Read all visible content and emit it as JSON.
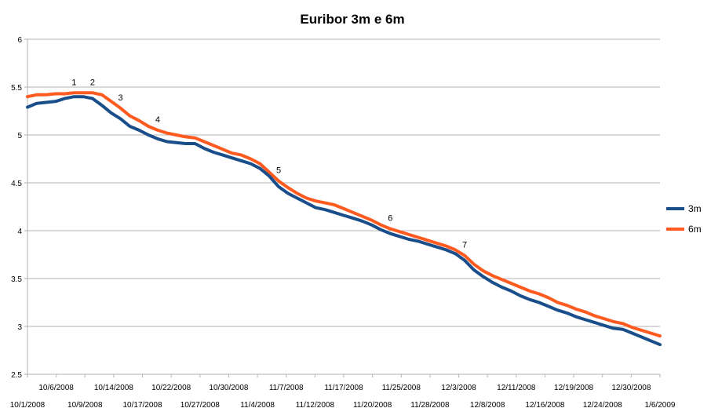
{
  "chart_data": {
    "type": "line",
    "title": "Euribor 3m e 6m",
    "xlabel": "",
    "ylabel": "",
    "ylim": [
      2.5,
      6
    ],
    "yticks": [
      "2.5",
      "3",
      "3.5",
      "4",
      "4.5",
      "5",
      "5.5",
      "6"
    ],
    "grid": true,
    "legend_position": "right",
    "x_tick_labels_row1": [
      "10/6/2008",
      "10/14/2008",
      "10/22/2008",
      "10/30/2008",
      "11/7/2008",
      "11/17/2008",
      "11/25/2008",
      "12/3/2008",
      "12/11/2008",
      "12/19/2008",
      "12/30/2008"
    ],
    "x_tick_labels_row2": [
      "10/1/2008",
      "10/9/2008",
      "10/17/2008",
      "10/27/2008",
      "11/4/2008",
      "11/12/2008",
      "11/20/2008",
      "11/28/2008",
      "12/8/2008",
      "12/16/2008",
      "12/24/2008",
      "1/6/2009"
    ],
    "x": [
      "10/1/2008",
      "10/2/2008",
      "10/3/2008",
      "10/6/2008",
      "10/7/2008",
      "10/8/2008",
      "10/9/2008",
      "10/10/2008",
      "10/13/2008",
      "10/14/2008",
      "10/15/2008",
      "10/16/2008",
      "10/17/2008",
      "10/20/2008",
      "10/21/2008",
      "10/22/2008",
      "10/23/2008",
      "10/24/2008",
      "10/27/2008",
      "10/28/2008",
      "10/29/2008",
      "10/30/2008",
      "10/31/2008",
      "11/3/2008",
      "11/4/2008",
      "11/5/2008",
      "11/6/2008",
      "11/7/2008",
      "11/10/2008",
      "11/11/2008",
      "11/12/2008",
      "11/13/2008",
      "11/14/2008",
      "11/17/2008",
      "11/18/2008",
      "11/19/2008",
      "11/20/2008",
      "11/21/2008",
      "11/24/2008",
      "11/25/2008",
      "11/26/2008",
      "11/27/2008",
      "11/28/2008",
      "12/1/2008",
      "12/2/2008",
      "12/3/2008",
      "12/4/2008",
      "12/5/2008",
      "12/8/2008",
      "12/9/2008",
      "12/10/2008",
      "12/11/2008",
      "12/12/2008",
      "12/15/2008",
      "12/16/2008",
      "12/17/2008",
      "12/18/2008",
      "12/19/2008",
      "12/22/2008",
      "12/23/2008",
      "12/24/2008",
      "12/29/2008",
      "12/30/2008",
      "12/31/2008",
      "1/2/2009",
      "1/5/2009",
      "1/6/2009",
      "1/7/2009",
      "1/8/2009"
    ],
    "series": [
      {
        "name": "3m",
        "color": "#1a4e8a",
        "values": [
          5.29,
          5.33,
          5.34,
          5.35,
          5.38,
          5.4,
          5.4,
          5.38,
          5.31,
          5.23,
          5.17,
          5.09,
          5.05,
          5.0,
          4.96,
          4.93,
          4.92,
          4.91,
          4.91,
          4.86,
          4.82,
          4.79,
          4.76,
          4.73,
          4.7,
          4.65,
          4.57,
          4.46,
          4.39,
          4.34,
          4.29,
          4.24,
          4.22,
          4.19,
          4.16,
          4.13,
          4.1,
          4.06,
          4.01,
          3.97,
          3.94,
          3.91,
          3.89,
          3.86,
          3.83,
          3.8,
          3.76,
          3.69,
          3.59,
          3.52,
          3.46,
          3.41,
          3.37,
          3.32,
          3.28,
          3.25,
          3.21,
          3.17,
          3.14,
          3.1,
          3.07,
          3.04,
          3.01,
          2.98,
          2.97,
          2.93,
          2.89,
          2.85,
          2.81
        ]
      },
      {
        "name": "6m",
        "color": "#ff5a1f",
        "values": [
          5.4,
          5.42,
          5.42,
          5.43,
          5.43,
          5.44,
          5.44,
          5.44,
          5.42,
          5.35,
          5.28,
          5.2,
          5.15,
          5.09,
          5.05,
          5.02,
          5.0,
          4.98,
          4.97,
          4.93,
          4.89,
          4.85,
          4.81,
          4.79,
          4.75,
          4.7,
          4.61,
          4.52,
          4.45,
          4.39,
          4.34,
          4.31,
          4.29,
          4.27,
          4.23,
          4.19,
          4.15,
          4.11,
          4.06,
          4.02,
          3.99,
          3.96,
          3.93,
          3.9,
          3.87,
          3.84,
          3.8,
          3.74,
          3.65,
          3.58,
          3.53,
          3.49,
          3.45,
          3.41,
          3.37,
          3.34,
          3.3,
          3.25,
          3.22,
          3.18,
          3.15,
          3.11,
          3.08,
          3.05,
          3.03,
          2.99,
          2.96,
          2.93,
          2.9
        ]
      }
    ],
    "annotations": [
      {
        "label": "1",
        "index": 5
      },
      {
        "label": "2",
        "index": 7
      },
      {
        "label": "3",
        "index": 10
      },
      {
        "label": "4",
        "index": 14
      },
      {
        "label": "5",
        "index": 27
      },
      {
        "label": "6",
        "index": 39
      },
      {
        "label": "7",
        "index": 47
      }
    ]
  }
}
